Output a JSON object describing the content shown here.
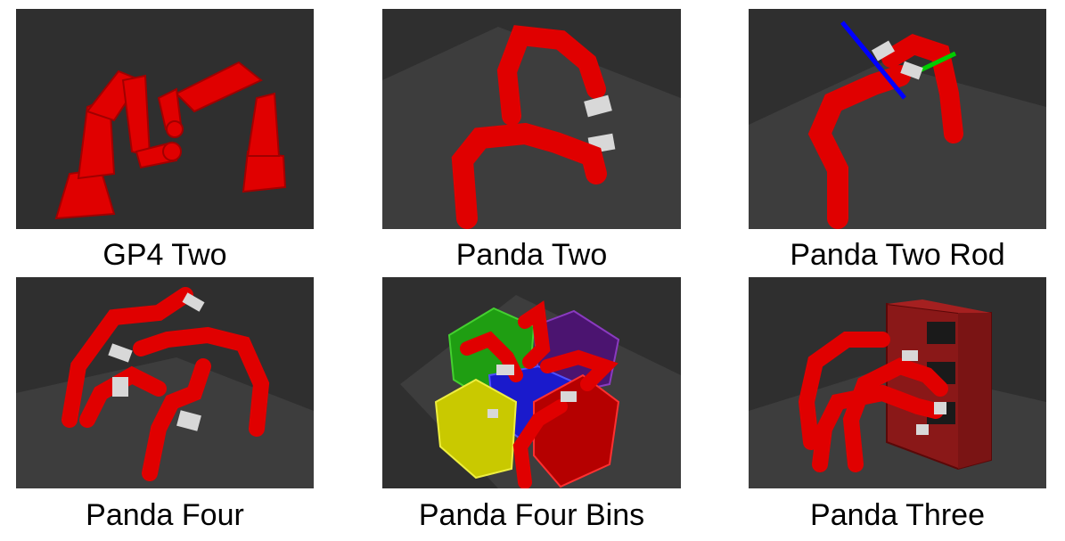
{
  "panels": [
    {
      "caption": "GP4 Two"
    },
    {
      "caption": "Panda Two"
    },
    {
      "caption": "Panda Two Rod"
    },
    {
      "caption": "Panda Four"
    },
    {
      "caption": "Panda Four Bins"
    },
    {
      "caption": "Panda Three"
    }
  ],
  "colors": {
    "background": "#2f2f2f",
    "floor": "#3d3d3d",
    "robot": "#e00000",
    "gripper": "#d8d8d8",
    "bin_green": "#1f9e12",
    "bin_purple": "#4b1470",
    "bin_blue": "#1a1acc",
    "bin_yellow": "#c9c900",
    "bin_red": "#b50000",
    "shelf": "#8a1818",
    "rod_blue": "#0000ff",
    "rod_green": "#00cc00"
  }
}
